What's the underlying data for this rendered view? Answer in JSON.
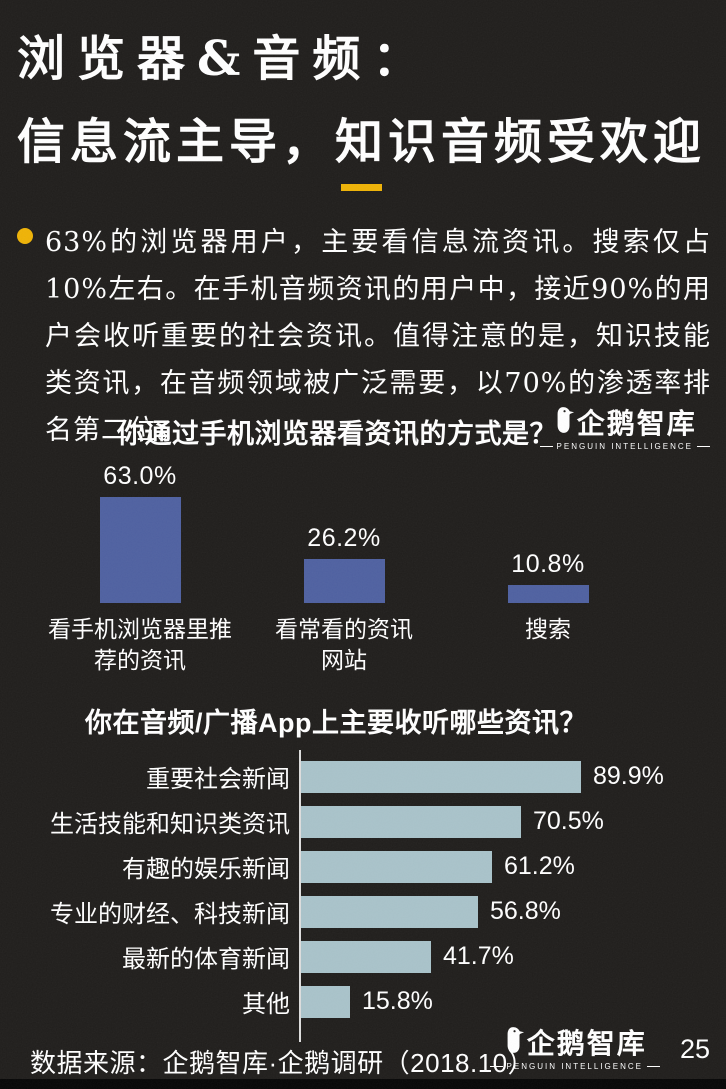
{
  "page": {
    "title_line1": "浏览器&音频：",
    "title_line2": "信息流主导，知识音频受欢迎",
    "bullet_text": "63%的浏览器用户，主要看信息流资讯。搜索仅占10%左右。在手机音频资讯的用户中，接近90%的用户会收听重要的社会资讯。值得注意的是，知识技能类资讯，在音频领域被广泛需要，以70%的渗透率排名第二位。",
    "source": "数据来源：企鹅智库·企鹅调研（2018.10）",
    "page_number": "25"
  },
  "logo": {
    "name_cn": "企鹅智库",
    "name_en": "PENGUIN INTELLIGENCE"
  },
  "colors": {
    "background": "#201e1c",
    "accent_yellow": "#efb306",
    "bar_blue": "#4f61a1",
    "bar_light_blue": "#a9c3ca",
    "text": "#ffffff"
  },
  "chart_data": [
    {
      "type": "bar",
      "orientation": "vertical",
      "title": "你通过手机浏览器看资讯的方式是？",
      "categories": [
        "看手机浏览器里推荐的资讯",
        "看常看的资讯网站",
        "搜索"
      ],
      "values": [
        63.0,
        26.2,
        10.8
      ],
      "labels": [
        "63.0%",
        "26.2%",
        "10.8%"
      ],
      "ylim": [
        0,
        65
      ],
      "grid": false,
      "legend": "none",
      "bar_color": "#4f61a1"
    },
    {
      "type": "bar",
      "orientation": "horizontal",
      "title": "你在音频/广播App上主要收听哪些资讯？",
      "categories": [
        "重要社会新闻",
        "生活技能和知识类资讯",
        "有趣的娱乐新闻",
        "专业的财经、科技新闻",
        "最新的体育新闻",
        "其他"
      ],
      "values": [
        89.9,
        70.5,
        61.2,
        56.8,
        41.7,
        15.8
      ],
      "labels": [
        "89.9%",
        "70.5%",
        "61.2%",
        "56.8%",
        "41.7%",
        "15.8%"
      ],
      "xlim": [
        0,
        100
      ],
      "grid": false,
      "legend": "none",
      "bar_color": "#a9c3ca"
    }
  ]
}
